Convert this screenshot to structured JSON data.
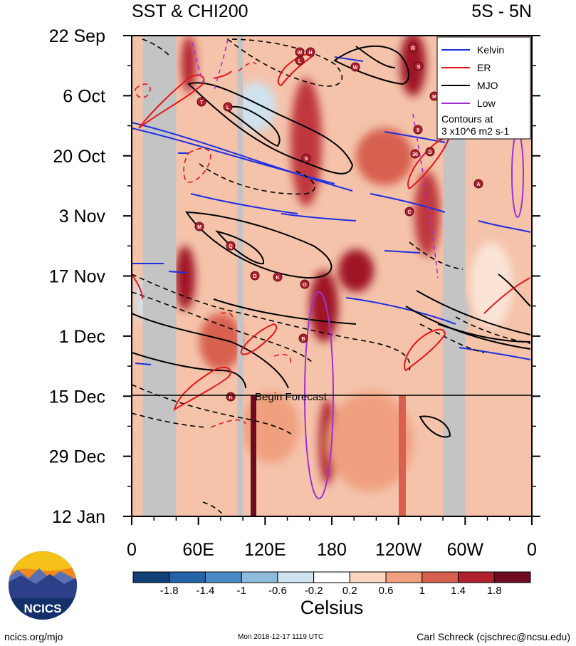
{
  "chart_data": {
    "type": "heatmap",
    "title": "SST & CHI200",
    "region": "5S - 5N",
    "y_ticks": [
      "22 Sep",
      "6 Oct",
      "20 Oct",
      "3 Nov",
      "17 Nov",
      "1 Dec",
      "15 Dec",
      "29 Dec",
      "12 Jan"
    ],
    "x_ticks": [
      "0",
      "60E",
      "120E",
      "180",
      "120W",
      "60W",
      "0"
    ],
    "x_range_deg_east": [
      0,
      360
    ],
    "y_range": [
      "22 Sep",
      "12 Jan"
    ],
    "forecast_start": "15 Dec",
    "forecast_label": "Begin Forecast",
    "legend": {
      "placement": "top-right",
      "entries": [
        {
          "name": "Kelvin",
          "color": "#1f2fe0"
        },
        {
          "name": "ER",
          "color": "#e8161b"
        },
        {
          "name": "MJO",
          "color": "#000000"
        },
        {
          "name": "Low",
          "color": "#a12fd6"
        }
      ],
      "note": "Contours at\n3 x10^6 m2 s-1"
    },
    "colorbar": {
      "label": "Celsius",
      "tick_labels": [
        "-1.8",
        "-1.4",
        "-1",
        "-0.6",
        "-0.2",
        "0.2",
        "0.6",
        "1",
        "1.4",
        "1.8"
      ],
      "colors": [
        "#123f75",
        "#2563a8",
        "#4a8ac4",
        "#8fbbdb",
        "#cfe2ef",
        "#ffffff",
        "#fbd5bf",
        "#f0a07f",
        "#d8604f",
        "#b2202e",
        "#6e0b1f"
      ]
    },
    "land_bands_deg_east": [
      [
        10,
        40
      ],
      [
        95,
        100
      ],
      [
        280,
        300
      ]
    ],
    "storm_symbols": [
      "W",
      "H",
      "L",
      "W",
      "R",
      "S",
      "M",
      "T",
      "L",
      "S",
      "9",
      "30",
      "D",
      "A",
      "C",
      "M",
      "Q",
      "D",
      "K",
      "O",
      "B",
      "K"
    ]
  },
  "footer": {
    "left": "ncics.org/mjo",
    "center": "Mon 2018-12-17 1119 UTC",
    "right": "Carl Schreck (cjschrec@ncsu.edu)",
    "logo_text": "NCICS"
  }
}
